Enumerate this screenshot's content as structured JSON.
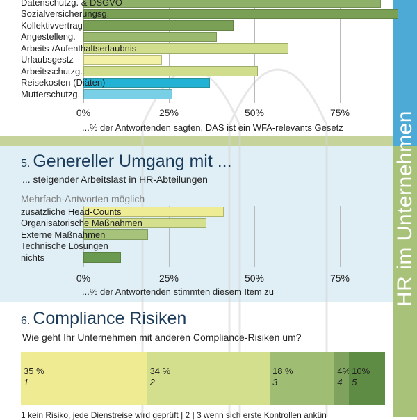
{
  "vertical_title": "HR im Unternehmen",
  "colors": {
    "left_strip": "#4da9d6",
    "right_strip_top": "#4da9d6",
    "right_strip_bottom": "#a8c27a",
    "band_light_blue": "#e0eff6",
    "band_olive": "#c6d49b"
  },
  "chart_data": [
    {
      "type": "bar",
      "orientation": "horizontal",
      "categories": [
        "Datenschutzg. & DSGVO",
        "Sozialversicherungsg.",
        "Kollektivvertrag",
        "Angestelleng.",
        "Arbeits-/Aufenthaltserlaubnis",
        "Urlaubsgestz",
        "Arbeitsschutzg.",
        "Reisekosten (Diäten)",
        "Mutterschutzg."
      ],
      "values": [
        87,
        92,
        44,
        39,
        60,
        23,
        51,
        37,
        26
      ],
      "bar_colors": [
        "#8fb069",
        "#7aa056",
        "#7aa056",
        "#9ab86e",
        "#cfdd8c",
        "#f3f0a8",
        "#cfdd8c",
        "#21b2d6",
        "#79cfe6"
      ],
      "xlim": [
        0,
        100
      ],
      "ticks": [
        "0%",
        "25%",
        "50%",
        "75%"
      ],
      "xlabel": "...% der Antwortenden sagten, DAS ist ein WFA-relevants Gesetz"
    },
    {
      "type": "bar",
      "orientation": "horizontal",
      "section_number": "5.",
      "title": "Genereller Umgang mit ...",
      "subtitle": "... steigender Arbeitslast in HR-Abteilungen",
      "note": "Mehrfach-Antworten möglich",
      "categories": [
        "zusätzliche Head-Counts",
        "Organisatorische Maßnahmen",
        "Externe Maßnahmen",
        "Technische Lösungen",
        "nichts"
      ],
      "values": [
        41,
        36,
        19,
        0,
        11
      ],
      "bar_colors": [
        "#eeec95",
        "#d4e08e",
        "#a7c27a",
        "#ffffff",
        "#6a9a50"
      ],
      "xlim": [
        0,
        100
      ],
      "ticks": [
        "0%",
        "25%",
        "50%",
        "75%"
      ],
      "xlabel": "...% der Antwortenden stimmten diesem Item zu"
    },
    {
      "type": "bar",
      "orientation": "stacked-horizontal",
      "section_number": "6.",
      "title": "Compliance Risiken",
      "subtitle": "Wie geht Ihr Unternehmen mit anderen Compliance-Risiken um?",
      "segments": [
        {
          "label": "35 %",
          "index": "1",
          "value": 35,
          "color": "#eeeb93"
        },
        {
          "label": "34 %",
          "index": "2",
          "value": 34,
          "color": "#d3df8d"
        },
        {
          "label": "18 %",
          "index": "3",
          "value": 18,
          "color": "#9fbd73"
        },
        {
          "label": "4%",
          "index": "4",
          "value": 4,
          "color": "#7fa35e"
        },
        {
          "label": "10%",
          "index": "5",
          "value": 10,
          "color": "#5f8c45"
        }
      ],
      "legend_text": "1 kein Risiko, jede Dienstreise wird geprüft | 2 | 3 wenn sich erste Kontrollen ankün"
    }
  ]
}
